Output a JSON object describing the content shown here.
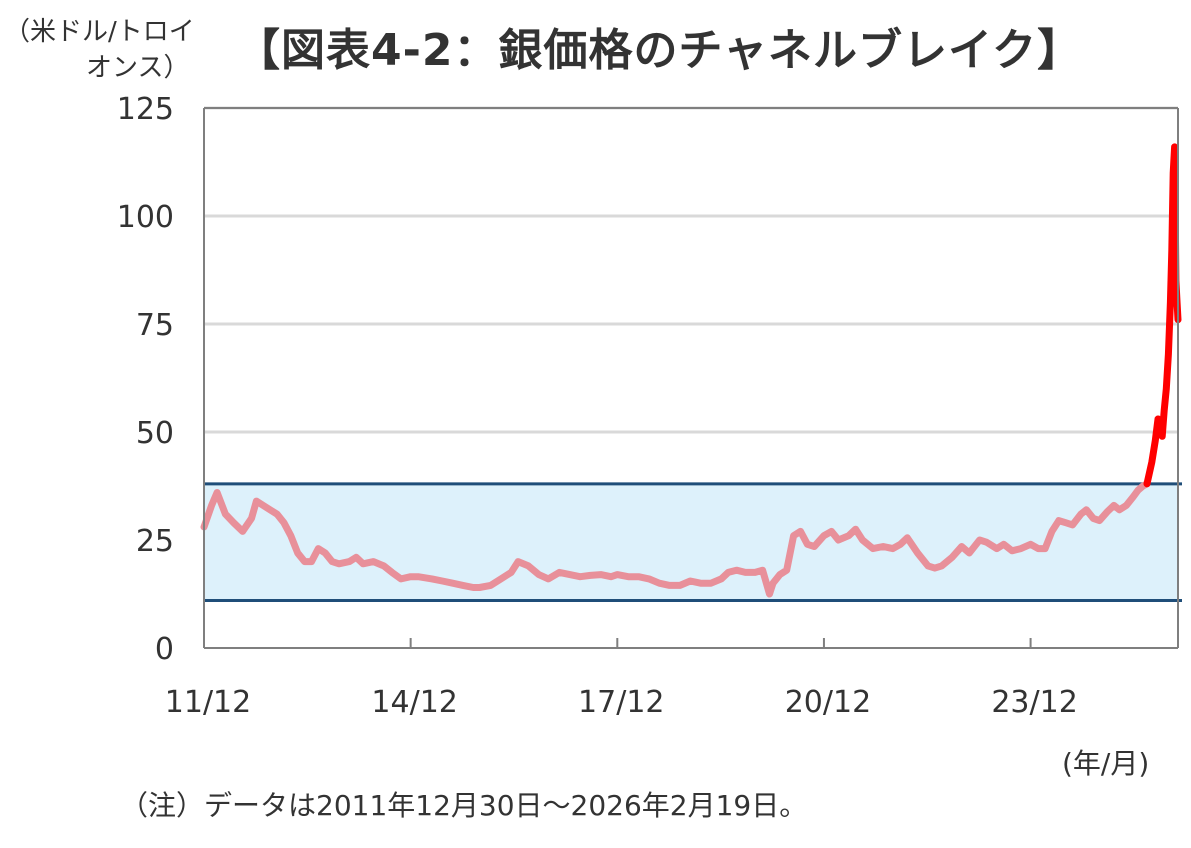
{
  "title": "【図表4-2：銀価格のチャネルブレイク】",
  "y_unit_line1": "（米ドル/トロイ",
  "y_unit_line2": "オンス）",
  "x_unit": "(年/月)",
  "note": "（注）データは2011年12月30日～2026年2月19日。",
  "colors": {
    "gridline": "#d9d9d9",
    "axis": "#7f7f7f",
    "channel_fill": "#ddf1fb",
    "channel_line": "#1f4e79",
    "series_in_channel": "#e8909a",
    "series_breakout": "#ff0000"
  },
  "chart_data": {
    "type": "line",
    "title": "【図表4-2：銀価格のチャネルブレイク】",
    "ylabel": "（米ドル/トロイオンス）",
    "xlabel": "(年/月)",
    "ylim": [
      0,
      125
    ],
    "xlim": [
      2011.99,
      2026.13
    ],
    "yticks": [
      0,
      25,
      50,
      75,
      100,
      125
    ],
    "xticks": [
      {
        "label": "11/12",
        "x": 2011.99
      },
      {
        "label": "14/12",
        "x": 2014.99
      },
      {
        "label": "17/12",
        "x": 2017.99
      },
      {
        "label": "20/12",
        "x": 2020.99
      },
      {
        "label": "23/12",
        "x": 2023.99
      }
    ],
    "channel": {
      "upper": 38,
      "lower": 11
    },
    "grid": true,
    "series": [
      {
        "color": "#e8909a",
        "points": [
          [
            2011.99,
            28
          ],
          [
            2012.1,
            33
          ],
          [
            2012.18,
            36
          ],
          [
            2012.3,
            31
          ],
          [
            2012.42,
            29
          ],
          [
            2012.55,
            27
          ],
          [
            2012.68,
            30
          ],
          [
            2012.75,
            34
          ],
          [
            2012.85,
            33
          ],
          [
            2012.95,
            32
          ],
          [
            2013.05,
            31
          ],
          [
            2013.15,
            29
          ],
          [
            2013.25,
            26
          ],
          [
            2013.35,
            22
          ],
          [
            2013.45,
            20
          ],
          [
            2013.55,
            20
          ],
          [
            2013.65,
            23
          ],
          [
            2013.75,
            22
          ],
          [
            2013.85,
            20
          ],
          [
            2013.95,
            19.5
          ],
          [
            2014.1,
            20
          ],
          [
            2014.2,
            21
          ],
          [
            2014.3,
            19.5
          ],
          [
            2014.45,
            20
          ],
          [
            2014.6,
            19
          ],
          [
            2014.72,
            17.5
          ],
          [
            2014.85,
            16
          ],
          [
            2014.99,
            16.5
          ],
          [
            2015.1,
            16.5
          ],
          [
            2015.3,
            16
          ],
          [
            2015.45,
            15.5
          ],
          [
            2015.6,
            15
          ],
          [
            2015.75,
            14.5
          ],
          [
            2015.9,
            14
          ],
          [
            2015.99,
            14
          ],
          [
            2016.15,
            14.5
          ],
          [
            2016.3,
            16
          ],
          [
            2016.45,
            17.5
          ],
          [
            2016.55,
            20
          ],
          [
            2016.7,
            19
          ],
          [
            2016.85,
            17
          ],
          [
            2016.99,
            16
          ],
          [
            2017.15,
            17.5
          ],
          [
            2017.3,
            17
          ],
          [
            2017.45,
            16.5
          ],
          [
            2017.6,
            16.8
          ],
          [
            2017.75,
            17
          ],
          [
            2017.9,
            16.5
          ],
          [
            2017.99,
            17
          ],
          [
            2018.15,
            16.5
          ],
          [
            2018.3,
            16.5
          ],
          [
            2018.45,
            16
          ],
          [
            2018.6,
            15
          ],
          [
            2018.75,
            14.5
          ],
          [
            2018.9,
            14.5
          ],
          [
            2019.05,
            15.5
          ],
          [
            2019.2,
            15
          ],
          [
            2019.35,
            15
          ],
          [
            2019.5,
            16
          ],
          [
            2019.6,
            17.5
          ],
          [
            2019.72,
            18
          ],
          [
            2019.85,
            17.5
          ],
          [
            2019.99,
            17.5
          ],
          [
            2020.1,
            18
          ],
          [
            2020.2,
            12.5
          ],
          [
            2020.25,
            15
          ],
          [
            2020.35,
            17
          ],
          [
            2020.45,
            18
          ],
          [
            2020.55,
            26
          ],
          [
            2020.65,
            27
          ],
          [
            2020.75,
            24
          ],
          [
            2020.85,
            23.5
          ],
          [
            2020.99,
            26
          ],
          [
            2021.1,
            27
          ],
          [
            2021.2,
            25
          ],
          [
            2021.35,
            26
          ],
          [
            2021.45,
            27.5
          ],
          [
            2021.55,
            25
          ],
          [
            2021.7,
            23
          ],
          [
            2021.85,
            23.5
          ],
          [
            2021.99,
            23
          ],
          [
            2022.1,
            24
          ],
          [
            2022.2,
            25.5
          ],
          [
            2022.35,
            22
          ],
          [
            2022.5,
            19
          ],
          [
            2022.6,
            18.5
          ],
          [
            2022.7,
            19
          ],
          [
            2022.85,
            21
          ],
          [
            2022.99,
            23.5
          ],
          [
            2023.1,
            22
          ],
          [
            2023.25,
            25
          ],
          [
            2023.35,
            24.5
          ],
          [
            2023.5,
            23
          ],
          [
            2023.6,
            24
          ],
          [
            2023.72,
            22.5
          ],
          [
            2023.85,
            23
          ],
          [
            2023.99,
            24
          ],
          [
            2024.1,
            23
          ],
          [
            2024.2,
            23
          ],
          [
            2024.3,
            27
          ],
          [
            2024.4,
            29.5
          ],
          [
            2024.5,
            29
          ],
          [
            2024.6,
            28.5
          ],
          [
            2024.72,
            31
          ],
          [
            2024.8,
            32
          ],
          [
            2024.9,
            30
          ],
          [
            2024.99,
            29.5
          ],
          [
            2025.1,
            31.5
          ],
          [
            2025.2,
            33
          ],
          [
            2025.28,
            32
          ],
          [
            2025.38,
            33
          ],
          [
            2025.48,
            35
          ],
          [
            2025.55,
            36.5
          ],
          [
            2025.62,
            37.5
          ],
          [
            2025.68,
            38
          ]
        ]
      },
      {
        "color": "#ff0000",
        "points": [
          [
            2025.68,
            38
          ],
          [
            2025.75,
            43
          ],
          [
            2025.8,
            48
          ],
          [
            2025.84,
            53
          ],
          [
            2025.87,
            50
          ],
          [
            2025.9,
            49
          ],
          [
            2025.93,
            55
          ],
          [
            2025.96,
            60
          ],
          [
            2025.99,
            68
          ],
          [
            2026.02,
            80
          ],
          [
            2026.04,
            92
          ],
          [
            2026.06,
            110
          ],
          [
            2026.08,
            116
          ],
          [
            2026.1,
            85
          ],
          [
            2026.13,
            76
          ]
        ]
      }
    ]
  }
}
